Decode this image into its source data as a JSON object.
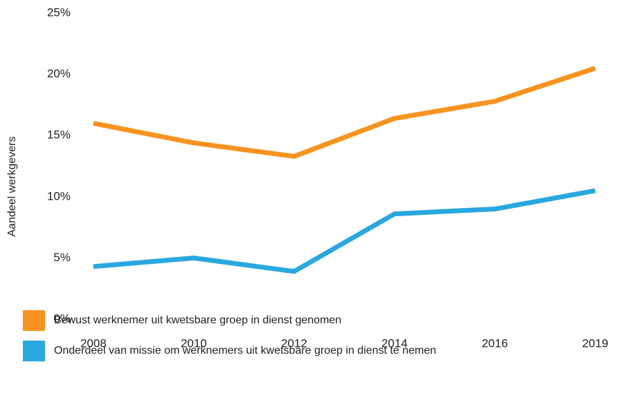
{
  "chart_data": {
    "type": "line",
    "y_label": "Aandeel werkgevers",
    "categories": [
      "2008",
      "2010",
      "2012",
      "2014",
      "2016",
      "2019"
    ],
    "series": [
      {
        "name": "Bewust werknemer uit kwetsbare groep in dienst genomen",
        "color": "#f7931e",
        "values": [
          16.0,
          14.4,
          13.3,
          16.4,
          17.8,
          20.5
        ]
      },
      {
        "name": "Onderdeel van missie om werknemers uit kwetsbare groep in dienst te nemen",
        "color": "#29a8e0",
        "values": [
          4.3,
          5.0,
          3.9,
          8.6,
          9.0,
          10.5
        ]
      }
    ],
    "ylim": [
      0,
      25
    ],
    "yticks": [
      {
        "value": 0,
        "label": "0%"
      },
      {
        "value": 5,
        "label": "5%"
      },
      {
        "value": 10,
        "label": "10%"
      },
      {
        "value": 15,
        "label": "15%"
      },
      {
        "value": 20,
        "label": "20%"
      },
      {
        "value": 25,
        "label": "25%"
      }
    ],
    "grid": false
  }
}
